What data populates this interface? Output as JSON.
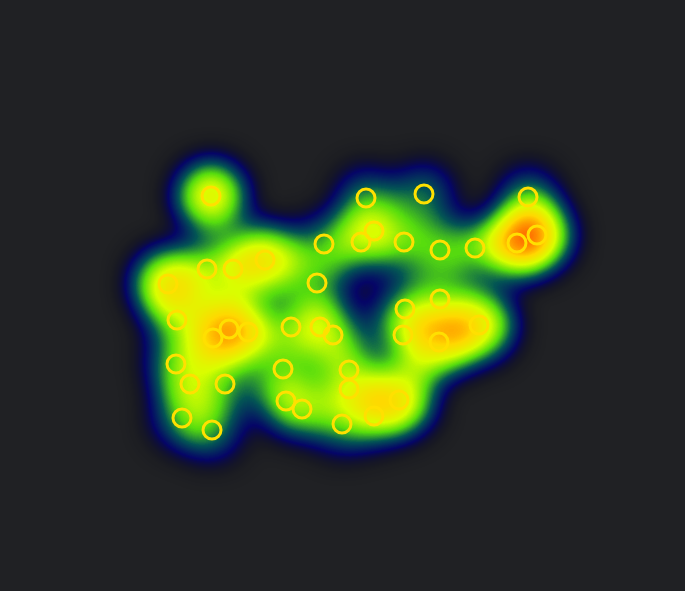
{
  "chart_data": {
    "type": "scatter",
    "x": [
      211,
      366,
      424,
      528,
      324,
      361,
      374,
      404,
      440,
      475,
      517,
      537,
      265,
      207,
      233,
      168,
      317,
      440,
      405,
      177,
      229,
      213,
      248,
      291,
      320,
      333,
      403,
      439,
      479,
      176,
      283,
      349,
      190,
      225,
      349,
      286,
      302,
      399,
      374,
      182,
      212,
      342
    ],
    "y": [
      196,
      198,
      194,
      197,
      244,
      242,
      231,
      242,
      250,
      248,
      243,
      235,
      260,
      269,
      269,
      284,
      283,
      299,
      309,
      320,
      329,
      338,
      332,
      327,
      327,
      335,
      335,
      342,
      325,
      364,
      369,
      370,
      384,
      384,
      389,
      401,
      409,
      400,
      416,
      418,
      430,
      424
    ],
    "weights": [
      2,
      1,
      1,
      1,
      1,
      1,
      1,
      1,
      1,
      1,
      2,
      2,
      2,
      1,
      1,
      2,
      1,
      1,
      1,
      1,
      2,
      1,
      1,
      1,
      1,
      1,
      1,
      2,
      2,
      1,
      1,
      1,
      1,
      1,
      1,
      1,
      1,
      2,
      1,
      1,
      1,
      1
    ],
    "xlim": [
      0,
      685
    ],
    "ylim": [
      0,
      591
    ],
    "tick_labels": false,
    "color": "#ffe000"
  }
}
